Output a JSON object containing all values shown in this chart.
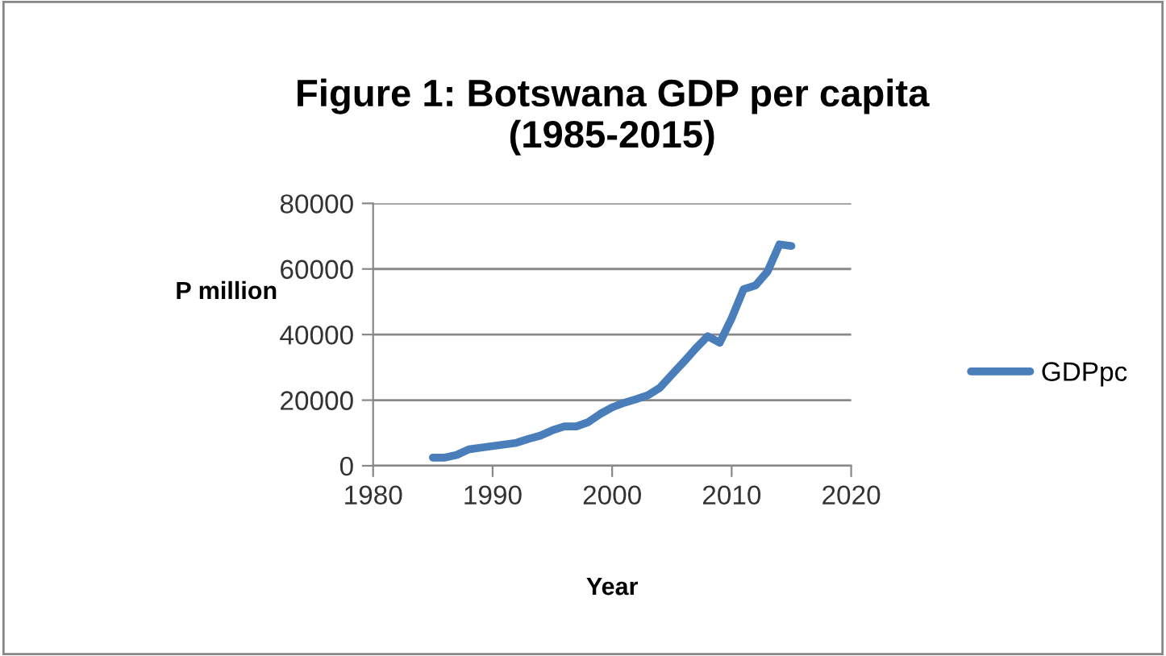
{
  "chart_data": {
    "type": "line",
    "title": "Figure 1: Botswana GDP per capita\n(1985-2015)",
    "xlabel": "Year",
    "ylabel": "P million",
    "x": [
      1985,
      1986,
      1987,
      1988,
      1989,
      1990,
      1991,
      1992,
      1993,
      1994,
      1995,
      1996,
      1997,
      1998,
      1999,
      2000,
      2001,
      2002,
      2003,
      2004,
      2005,
      2006,
      2007,
      2008,
      2009,
      2010,
      2011,
      2012,
      2013,
      2014,
      2015
    ],
    "series": [
      {
        "name": "GDPpc",
        "color": "#4a7ebb",
        "values": [
          2500,
          2500,
          3300,
          5000,
          5500,
          6000,
          6500,
          7000,
          8200,
          9200,
          10800,
          12000,
          12000,
          13300,
          15800,
          17800,
          19200,
          20300,
          21500,
          23800,
          27800,
          31700,
          35800,
          39500,
          37500,
          45000,
          53800,
          55000,
          59200,
          67500,
          67000
        ]
      }
    ],
    "xlim": [
      1980,
      2020
    ],
    "xticks": [
      1980,
      1990,
      2000,
      2010,
      2020
    ],
    "ylim": [
      0,
      80000
    ],
    "yticks": [
      0,
      20000,
      40000,
      60000,
      80000
    ],
    "grid": "y",
    "legend": "right",
    "marker": "none",
    "line_style": "solid"
  }
}
